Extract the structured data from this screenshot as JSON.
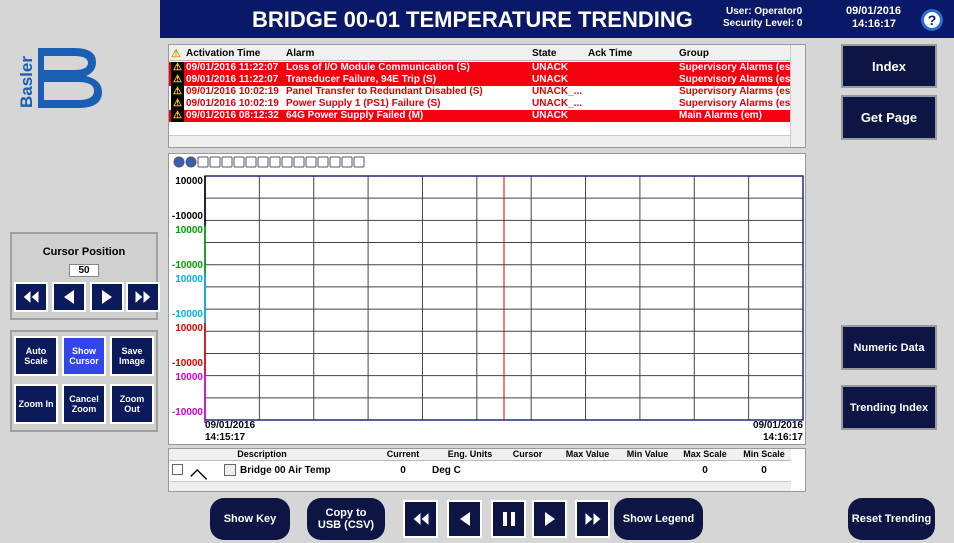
{
  "header": {
    "title": "BRIDGE 00-01 TEMPERATURE TRENDING",
    "user": "User: Operator0",
    "security": "Security Level: 0",
    "date": "09/01/2016",
    "time": "14:16:17",
    "help": "?"
  },
  "logo": {
    "text": "Basler"
  },
  "cursor_panel": {
    "label": "Cursor Position",
    "value": 50
  },
  "tool_buttons": [
    "Auto Scale",
    "Show Cursor",
    "Save Image",
    "Zoom In",
    "Cancel Zoom",
    "Zoom Out"
  ],
  "side_buttons": [
    "Index",
    "Get Page",
    "Numeric Data",
    "Trending Index"
  ],
  "alarm_table": {
    "columns": [
      "Activation Time",
      "Alarm",
      "State",
      "Ack Time",
      "Group"
    ],
    "rows": [
      {
        "time": "09/01/2016 11:22:07",
        "alarm": "Loss of I/O Module Communication (S)",
        "state": "UNACK",
        "group": "Supervisory Alarms (es)",
        "highlight": true
      },
      {
        "time": "09/01/2016 11:22:07",
        "alarm": "Transducer Failure, 94E Trip (S)",
        "state": "UNACK",
        "group": "Supervisory Alarms (es)",
        "highlight": true
      },
      {
        "time": "09/01/2016 10:02:19",
        "alarm": "Panel Transfer to Redundant Disabled (S)",
        "state": "UNACK_...",
        "group": "Supervisory Alarms (es)",
        "highlight": false
      },
      {
        "time": "09/01/2016 10:02:19",
        "alarm": "Power Supply 1 (PS1) Failure (S)",
        "state": "UNACK_...",
        "group": "Supervisory Alarms (es)",
        "highlight": false
      },
      {
        "time": "09/01/2016 08:12:32",
        "alarm": "64G Power Supply Failed (M)",
        "state": "UNACK",
        "group": "Main Alarms (em)",
        "highlight": true
      }
    ]
  },
  "trend": {
    "scales": [
      {
        "max": 10000,
        "min": -10000,
        "color": "#000000"
      },
      {
        "max": 10000,
        "min": -10000,
        "color": "#00a000"
      },
      {
        "max": 10000,
        "min": -10000,
        "color": "#00b0e0"
      },
      {
        "max": 10000,
        "min": -10000,
        "color": "#e00000"
      },
      {
        "max": 10000,
        "min": -10000,
        "color": "#d000d0"
      }
    ],
    "start_date": "09/01/2016",
    "start_time": "14:15:17",
    "end_date": "09/01/2016",
    "end_time": "14:16:17"
  },
  "pen_table": {
    "columns": [
      "Description",
      "Current",
      "Eng. Units",
      "Cursor",
      "Max Value",
      "Min Value",
      "Max Scale",
      "Min Scale"
    ],
    "row": {
      "description": "Bridge 00 Air Temp",
      "current": "0",
      "eng_units": "Deg C",
      "max_scale": "0",
      "min_scale": "0"
    }
  },
  "bottom_buttons": {
    "show_key": "Show Key",
    "copy": "Copy to USB (CSV)",
    "show_legend": "Show Legend",
    "reset": "Reset Trending"
  }
}
